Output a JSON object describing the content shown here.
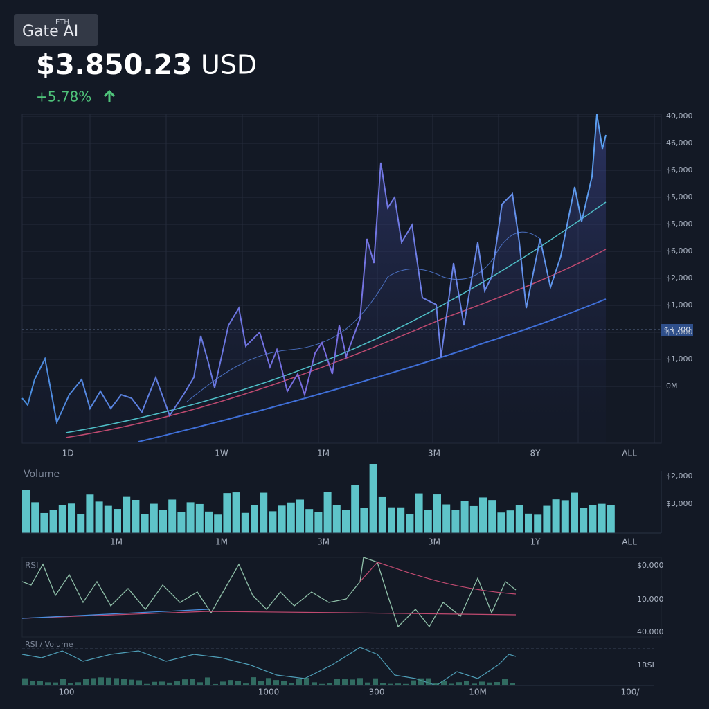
{
  "header": {
    "badge": "ETH",
    "brand": "Gate AI",
    "price": "$3.850.23",
    "currency": "USD",
    "change": "+5.78%"
  },
  "price_chart": {
    "right_axis": [
      "40,000",
      "46,000",
      "$6,000",
      "$5,000",
      "$5,000",
      "$6,000",
      "$2,000",
      "$1,000",
      "$1,000",
      "$1,000",
      "0M"
    ],
    "current_tag": "$3 700",
    "x_labels": [
      "1D",
      "1W",
      "1M",
      "3M",
      "8Y",
      "ALL"
    ]
  },
  "volume_chart": {
    "title": "Volume",
    "right_axis": [
      "$2,000",
      "$3,000"
    ],
    "x_labels": [
      "1M",
      "1M",
      "3M",
      "3M",
      "1Y",
      "ALL"
    ]
  },
  "rsi_chart": {
    "title": "RSI",
    "right_axis": [
      "$0.000",
      "10,000",
      "40.000"
    ],
    "sub_title": "RSI / Volume",
    "sub_axis": "1RSI",
    "x_labels": [
      "100",
      "1000",
      "300",
      "10M",
      "100/"
    ]
  }
}
